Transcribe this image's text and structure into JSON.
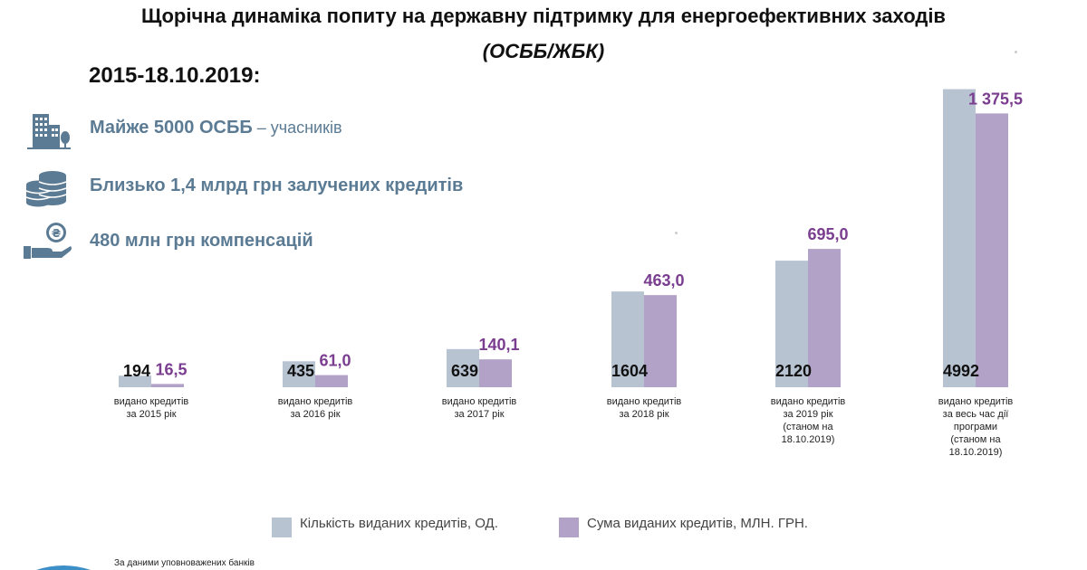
{
  "header": {
    "title": "Щорічна динаміка попиту на державну підтримку для енергоефективних заходів",
    "subtitle": "(ОСББ/ЖБК)",
    "period": "2015-18.10.2019:"
  },
  "facts": [
    {
      "bold": "Майже 5000 ОСББ",
      "light": " – учасників",
      "icon": "building-icon"
    },
    {
      "bold": "Близько 1,4 млрд грн залучених кредитів",
      "light": "",
      "icon": "coins-stack-icon"
    },
    {
      "bold": "480 млн грн компенсацій",
      "light": "",
      "icon": "hand-money-icon"
    }
  ],
  "source_note": "За даними уповноважених банків",
  "colors": {
    "count": "#b8c3d2",
    "sum": "#b3a2c8",
    "sum_label": "#7a3d8f",
    "fact_text": "#5b7b94"
  },
  "chart_data": {
    "type": "bar",
    "categories": [
      [
        "видано кредитів",
        "за 2015 рік"
      ],
      [
        "видано кредитів",
        "за 2016 рік"
      ],
      [
        "видано кредитів",
        "за 2017 рік"
      ],
      [
        "видано кредитів",
        "за 2018 рік"
      ],
      [
        "видано кредитів",
        "за 2019 рік",
        "(станом на",
        "18.10.2019)"
      ],
      [
        "видано кредитів",
        "за весь час дії",
        "програми",
        "(станом на",
        "18.10.2019)"
      ]
    ],
    "series": [
      {
        "name": "Кількість виданих кредитів, ОД.",
        "values": [
          194,
          435,
          639,
          1604,
          2120,
          4992
        ],
        "labels": [
          "194",
          "435",
          "639",
          "1604",
          "2120",
          "4992"
        ]
      },
      {
        "name": "Сума виданих кредитів, МЛН. ГРН.",
        "values": [
          16.5,
          61.0,
          140.1,
          463.0,
          695.0,
          1375.5
        ],
        "labels": [
          "16,5",
          "61,0",
          "140,1",
          "463,0",
          "695,0",
          "1 375,5"
        ]
      }
    ],
    "legend": "bottom",
    "grid": false
  }
}
